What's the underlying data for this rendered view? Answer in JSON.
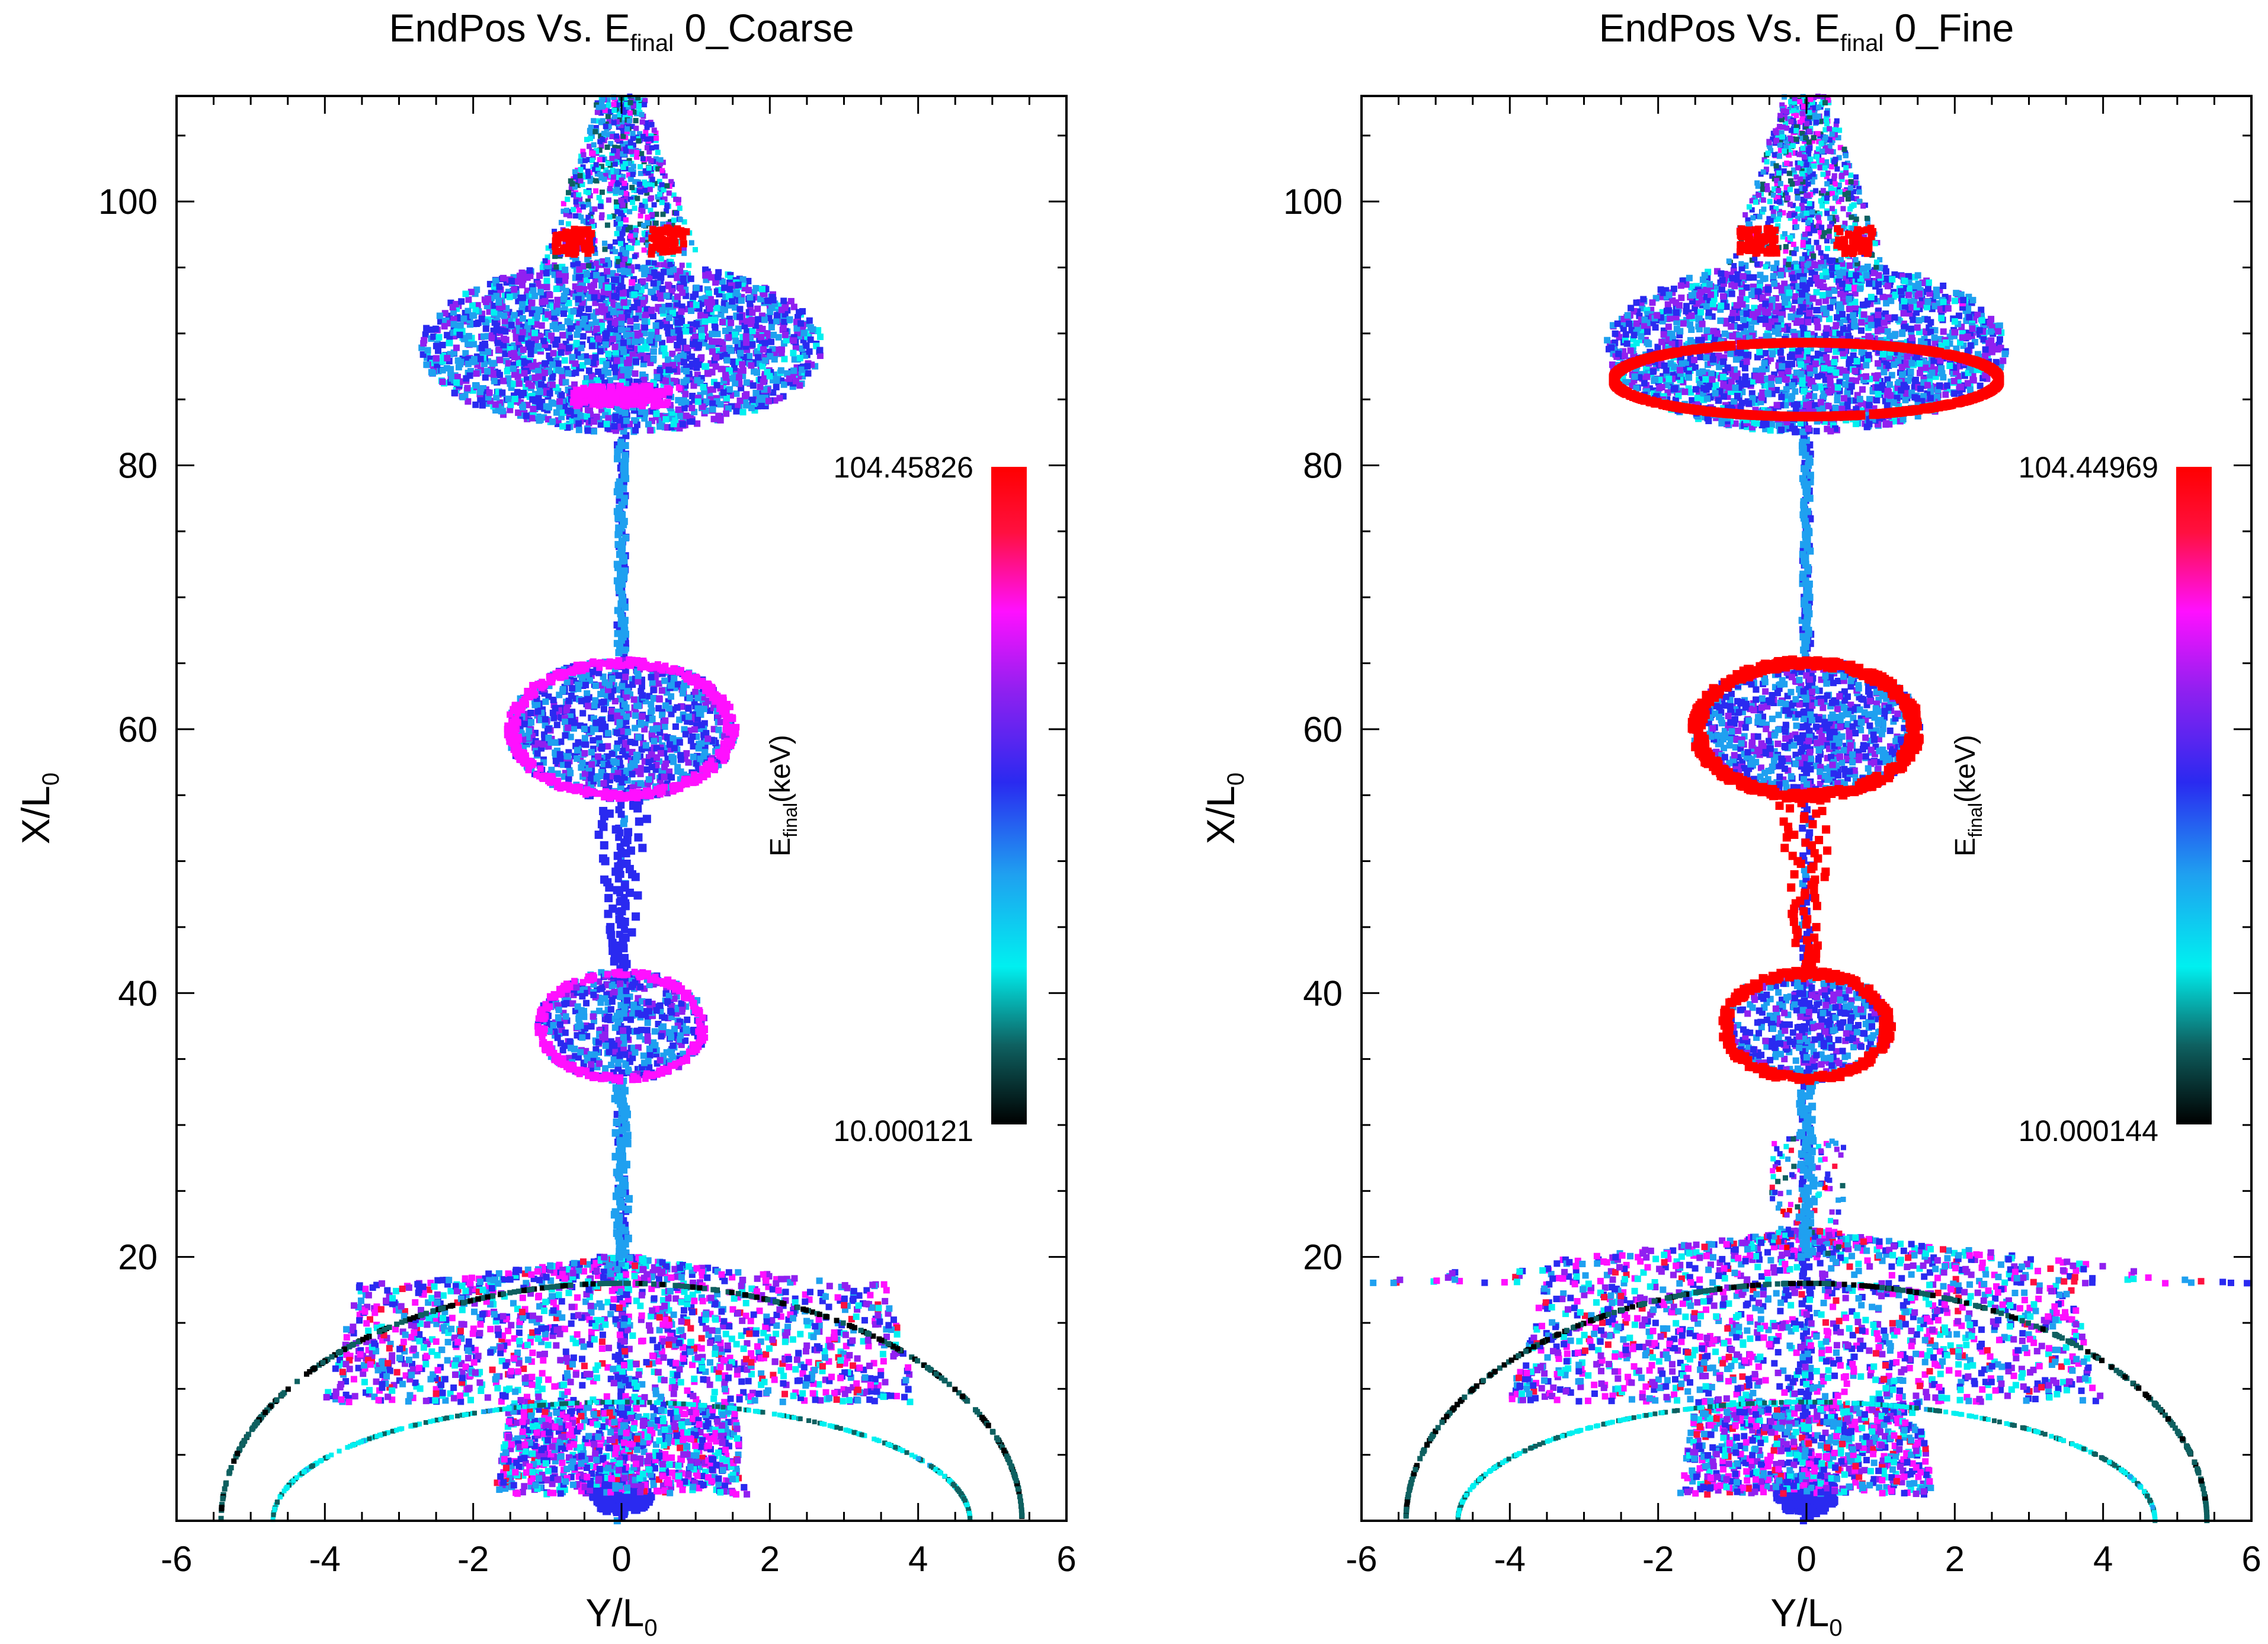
{
  "chart_data": [
    {
      "type": "scatter",
      "title": {
        "main": "EndPos Vs. E",
        "sub": "final",
        "suffix": " 0_Coarse"
      },
      "xlabel": {
        "main": "Y/L",
        "sub": "0"
      },
      "ylabel": {
        "main": "X/L",
        "sub": "0"
      },
      "xlim": [
        -6,
        6
      ],
      "ylim": [
        0,
        108
      ],
      "xticks": [
        "-6",
        "-4",
        "-2",
        "0",
        "2",
        "4",
        "6"
      ],
      "yticks": [
        "20",
        "40",
        "60",
        "80",
        "100"
      ],
      "colorbar": {
        "max_label": "104.45826",
        "min_label": "10.000121",
        "title": {
          "main": "E",
          "sub": "final",
          "suffix": "(keV)"
        },
        "colormap": [
          "#000000",
          "#0e6060",
          "#00f0f0",
          "#1fa0f0",
          "#2a2af0",
          "#9020f0",
          "#ff10ff",
          "#ff1040",
          "#ff0000"
        ]
      },
      "regions": [
        {
          "name": "bottom-blob",
          "y_center": 0,
          "x_center": 2,
          "half_width": 0.45,
          "half_height": 1.8,
          "dominant_energy_keV": 55
        },
        {
          "name": "lower-fan",
          "x_range": [
            2,
            20
          ],
          "y_range": [
            -5.5,
            5.5
          ],
          "dominant_energy_keV": 50
        },
        {
          "name": "bulb-38",
          "x_center": 37.5,
          "half_width": 1.2,
          "half_height": 4.5,
          "dominant_energy_keV": 55,
          "rim_energy_keV": 80
        },
        {
          "name": "bulb-60",
          "x_center": 60,
          "half_width": 1.6,
          "half_height": 6,
          "dominant_energy_keV": 55,
          "rim_energy_keV": 80
        },
        {
          "name": "top-lobe",
          "x_center": 89,
          "half_width": 2.7,
          "half_height": 7,
          "dominant_energy_keV": 50,
          "rim_energy_keV": 45
        },
        {
          "name": "top-spray",
          "x_range": [
            95,
            108
          ],
          "y_range": [
            -0.9,
            0.9
          ],
          "dominant_energy_keV": 60
        }
      ]
    },
    {
      "type": "scatter",
      "title": {
        "main": "EndPos Vs. E",
        "sub": "final",
        "suffix": " 0_Fine"
      },
      "xlabel": {
        "main": "Y/L",
        "sub": "0"
      },
      "ylabel": {
        "main": "X/L",
        "sub": "0"
      },
      "xlim": [
        -6,
        6
      ],
      "ylim": [
        0,
        108
      ],
      "xticks": [
        "-6",
        "-4",
        "-2",
        "0",
        "2",
        "4",
        "6"
      ],
      "yticks": [
        "20",
        "40",
        "60",
        "80",
        "100"
      ],
      "colorbar": {
        "max_label": "104.44969",
        "min_label": "10.000144",
        "title": {
          "main": "E",
          "sub": "final",
          "suffix": "(keV)"
        },
        "colormap": [
          "#000000",
          "#0e6060",
          "#00f0f0",
          "#1fa0f0",
          "#2a2af0",
          "#9020f0",
          "#ff10ff",
          "#ff1040",
          "#ff0000"
        ]
      },
      "regions": [
        {
          "name": "bottom-blob",
          "x_center": 2,
          "half_width": 0.45,
          "half_height": 1.8,
          "dominant_energy_keV": 55
        },
        {
          "name": "lower-fan",
          "x_range": [
            2,
            29
          ],
          "y_range": [
            -5.5,
            5.5
          ],
          "dominant_energy_keV": 50
        },
        {
          "name": "bulb-38",
          "x_center": 37.5,
          "half_width": 1.2,
          "half_height": 4.5,
          "dominant_energy_keV": 55,
          "rim_energy_keV": 104
        },
        {
          "name": "bulb-60",
          "x_center": 60,
          "half_width": 1.6,
          "half_height": 6,
          "dominant_energy_keV": 55,
          "rim_energy_keV": 104
        },
        {
          "name": "top-lobe",
          "x_center": 89,
          "half_width": 2.7,
          "half_height": 7,
          "dominant_energy_keV": 50,
          "rim_energy_keV": 104
        },
        {
          "name": "top-spray",
          "x_range": [
            95,
            108
          ],
          "y_range": [
            -0.9,
            0.9
          ],
          "dominant_energy_keV": 60
        }
      ]
    }
  ]
}
